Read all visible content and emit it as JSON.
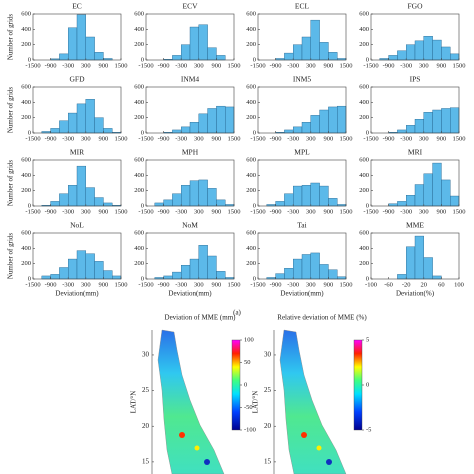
{
  "caption": "(a)",
  "chart_data": [
    {
      "type": "histogram",
      "title": "EC",
      "y_label": "Number of grids",
      "bins": [
        -1500,
        -1200,
        -900,
        -600,
        -300,
        0,
        300,
        600,
        900,
        1200,
        1500
      ],
      "values": [
        0,
        0,
        15,
        80,
        420,
        590,
        300,
        100,
        20,
        0
      ],
      "xlim": [
        -1500,
        1500
      ],
      "xticks": [
        -1500,
        -900,
        -300,
        300,
        900,
        1500
      ],
      "ylim": [
        0,
        600
      ],
      "yticks": [
        0,
        200,
        400,
        600
      ],
      "color": "#5cb9e9"
    },
    {
      "type": "histogram",
      "title": "ECV",
      "bins": [
        -1500,
        -1200,
        -900,
        -600,
        -300,
        0,
        300,
        600,
        900,
        1200,
        1500
      ],
      "values": [
        0,
        0,
        10,
        60,
        200,
        430,
        460,
        160,
        60,
        0
      ],
      "xlim": [
        -1500,
        1500
      ],
      "xticks": [
        -1500,
        -900,
        -300,
        300,
        900,
        1500
      ],
      "ylim": [
        0,
        600
      ],
      "yticks": [
        0,
        200,
        400,
        600
      ],
      "color": "#5cb9e9"
    },
    {
      "type": "histogram",
      "title": "ECL",
      "bins": [
        -1500,
        -1200,
        -900,
        -600,
        -300,
        0,
        300,
        600,
        900,
        1200,
        1500
      ],
      "values": [
        0,
        0,
        20,
        90,
        200,
        300,
        520,
        230,
        100,
        20
      ],
      "xlim": [
        -1500,
        1500
      ],
      "xticks": [
        -1500,
        -900,
        -300,
        300,
        900,
        1500
      ],
      "ylim": [
        0,
        600
      ],
      "yticks": [
        0,
        200,
        400,
        600
      ],
      "color": "#5cb9e9"
    },
    {
      "type": "histogram",
      "title": "FGO",
      "bins": [
        -1500,
        -1200,
        -900,
        -600,
        -300,
        0,
        300,
        600,
        900,
        1200,
        1500
      ],
      "values": [
        0,
        20,
        60,
        120,
        200,
        250,
        310,
        260,
        170,
        80
      ],
      "xlim": [
        -1500,
        1500
      ],
      "xticks": [
        -1500,
        -900,
        -300,
        300,
        900,
        1500
      ],
      "ylim": [
        0,
        600
      ],
      "yticks": [
        0,
        200,
        400,
        600
      ],
      "color": "#5cb9e9"
    },
    {
      "type": "histogram",
      "title": "GFD",
      "y_label": "Number of grids",
      "bins": [
        -1500,
        -1200,
        -900,
        -600,
        -300,
        0,
        300,
        600,
        900,
        1200,
        1500
      ],
      "values": [
        0,
        20,
        60,
        160,
        260,
        380,
        440,
        200,
        60,
        10
      ],
      "xlim": [
        -1500,
        1500
      ],
      "xticks": [
        -1500,
        -900,
        -300,
        300,
        900,
        1500
      ],
      "ylim": [
        0,
        600
      ],
      "yticks": [
        0,
        200,
        400,
        600
      ],
      "color": "#5cb9e9"
    },
    {
      "type": "histogram",
      "title": "INM4",
      "bins": [
        -1500,
        -1200,
        -900,
        -600,
        -300,
        0,
        300,
        600,
        900,
        1200,
        1500
      ],
      "values": [
        0,
        0,
        10,
        40,
        80,
        140,
        250,
        320,
        350,
        340
      ],
      "xlim": [
        -1500,
        1500
      ],
      "xticks": [
        -1500,
        -900,
        -300,
        300,
        900,
        1500
      ],
      "ylim": [
        0,
        600
      ],
      "yticks": [
        0,
        200,
        400,
        600
      ],
      "color": "#5cb9e9"
    },
    {
      "type": "histogram",
      "title": "INM5",
      "bins": [
        -1500,
        -1200,
        -900,
        -600,
        -300,
        0,
        300,
        600,
        900,
        1200,
        1500
      ],
      "values": [
        0,
        0,
        10,
        40,
        80,
        140,
        230,
        300,
        340,
        350
      ],
      "xlim": [
        -1500,
        1500
      ],
      "xticks": [
        -1500,
        -900,
        -300,
        300,
        900,
        1500
      ],
      "ylim": [
        0,
        600
      ],
      "yticks": [
        0,
        200,
        400,
        600
      ],
      "color": "#5cb9e9"
    },
    {
      "type": "histogram",
      "title": "IPS",
      "bins": [
        -1500,
        -1200,
        -900,
        -600,
        -300,
        0,
        300,
        600,
        900,
        1200,
        1500
      ],
      "values": [
        0,
        0,
        10,
        40,
        100,
        180,
        270,
        300,
        320,
        330
      ],
      "xlim": [
        -1500,
        1500
      ],
      "xticks": [
        -1500,
        -900,
        -300,
        300,
        900,
        1500
      ],
      "ylim": [
        0,
        600
      ],
      "yticks": [
        0,
        200,
        400,
        600
      ],
      "color": "#5cb9e9"
    },
    {
      "type": "histogram",
      "title": "MIR",
      "y_label": "Number of grids",
      "bins": [
        -1500,
        -1200,
        -900,
        -600,
        -300,
        0,
        300,
        600,
        900,
        1200,
        1500
      ],
      "values": [
        0,
        10,
        60,
        160,
        270,
        520,
        240,
        110,
        40,
        10
      ],
      "xlim": [
        -1500,
        1500
      ],
      "xticks": [
        -1500,
        -900,
        -300,
        300,
        900,
        1500
      ],
      "ylim": [
        0,
        600
      ],
      "yticks": [
        0,
        200,
        400,
        600
      ],
      "color": "#5cb9e9"
    },
    {
      "type": "histogram",
      "title": "MPH",
      "bins": [
        -1500,
        -1200,
        -900,
        -600,
        -300,
        0,
        300,
        600,
        900,
        1200,
        1500
      ],
      "values": [
        0,
        40,
        80,
        160,
        270,
        330,
        340,
        230,
        80,
        20
      ],
      "xlim": [
        -1500,
        1500
      ],
      "xticks": [
        -1500,
        -900,
        -300,
        300,
        900,
        1500
      ],
      "ylim": [
        0,
        600
      ],
      "yticks": [
        0,
        200,
        400,
        600
      ],
      "color": "#5cb9e9"
    },
    {
      "type": "histogram",
      "title": "MPL",
      "bins": [
        -1500,
        -1200,
        -900,
        -600,
        -300,
        0,
        300,
        600,
        900,
        1200,
        1500
      ],
      "values": [
        0,
        20,
        60,
        160,
        260,
        270,
        300,
        260,
        100,
        20
      ],
      "xlim": [
        -1500,
        1500
      ],
      "xticks": [
        -1500,
        -900,
        -300,
        300,
        900,
        1500
      ],
      "ylim": [
        0,
        600
      ],
      "yticks": [
        0,
        200,
        400,
        600
      ],
      "color": "#5cb9e9"
    },
    {
      "type": "histogram",
      "title": "MRI",
      "bins": [
        -1500,
        -1200,
        -900,
        -600,
        -300,
        0,
        300,
        600,
        900,
        1200,
        1500
      ],
      "values": [
        0,
        0,
        30,
        60,
        140,
        280,
        420,
        560,
        340,
        130
      ],
      "xlim": [
        -1500,
        1500
      ],
      "xticks": [
        -1500,
        -900,
        -300,
        300,
        900,
        1500
      ],
      "ylim": [
        0,
        600
      ],
      "yticks": [
        0,
        200,
        400,
        600
      ],
      "color": "#5cb9e9"
    },
    {
      "type": "histogram",
      "title": "NoL",
      "y_label": "Number of grids",
      "x_label": "Deviation(mm)",
      "bins": [
        -1500,
        -1200,
        -900,
        -600,
        -300,
        0,
        300,
        600,
        900,
        1200,
        1500
      ],
      "values": [
        0,
        40,
        60,
        150,
        260,
        370,
        330,
        230,
        110,
        40
      ],
      "xlim": [
        -1500,
        1500
      ],
      "xticks": [
        -1500,
        -900,
        -300,
        300,
        900,
        1500
      ],
      "ylim": [
        0,
        600
      ],
      "yticks": [
        0,
        200,
        400,
        600
      ],
      "color": "#5cb9e9"
    },
    {
      "type": "histogram",
      "title": "NoM",
      "x_label": "Deviation(mm)",
      "bins": [
        -1500,
        -1200,
        -900,
        -600,
        -300,
        0,
        300,
        600,
        900,
        1200,
        1500
      ],
      "values": [
        0,
        20,
        40,
        90,
        180,
        260,
        440,
        300,
        100,
        20
      ],
      "xlim": [
        -1500,
        1500
      ],
      "xticks": [
        -1500,
        -900,
        -300,
        300,
        900,
        1500
      ],
      "ylim": [
        0,
        600
      ],
      "yticks": [
        0,
        200,
        400,
        600
      ],
      "color": "#5cb9e9"
    },
    {
      "type": "histogram",
      "title": "Tai",
      "x_label": "Deviation(mm)",
      "bins": [
        -1500,
        -1200,
        -900,
        -600,
        -300,
        0,
        300,
        600,
        900,
        1200,
        1500
      ],
      "values": [
        0,
        20,
        70,
        140,
        260,
        320,
        340,
        190,
        120,
        30
      ],
      "xlim": [
        -1500,
        1500
      ],
      "xticks": [
        -1500,
        -900,
        -300,
        300,
        900,
        1500
      ],
      "ylim": [
        0,
        600
      ],
      "yticks": [
        0,
        200,
        400,
        600
      ],
      "color": "#5cb9e9"
    },
    {
      "type": "histogram",
      "title": "MME",
      "x_label": "Deviation(%)",
      "bins": [
        -100,
        -80,
        -60,
        -40,
        -20,
        0,
        20,
        40,
        60,
        80,
        100
      ],
      "values": [
        0,
        0,
        0,
        60,
        420,
        560,
        280,
        40,
        0,
        0
      ],
      "xlim": [
        -100,
        100
      ],
      "xticks": [
        -100,
        -60,
        -20,
        20,
        60,
        100
      ],
      "ylim": [
        0,
        600
      ],
      "yticks": [
        0,
        200,
        400,
        600
      ],
      "color": "#5cb9e9"
    },
    {
      "type": "map",
      "title": "Deviation of MME (mm)",
      "y_label": "LAT/°N",
      "ylim": [
        13.3,
        33.5
      ],
      "yticks": [
        15,
        20,
        25,
        30
      ],
      "clim": [
        -100,
        100
      ],
      "cticks": [
        -100,
        -50,
        0,
        50,
        100
      ]
    },
    {
      "type": "map",
      "title": "Relative deviation of MME (%)",
      "y_label": "LAT/°N",
      "ylim": [
        13.3,
        33.5
      ],
      "yticks": [
        15,
        20,
        25,
        30
      ],
      "clim": [
        -5,
        5
      ],
      "cticks": [
        -5,
        0,
        5
      ]
    }
  ]
}
